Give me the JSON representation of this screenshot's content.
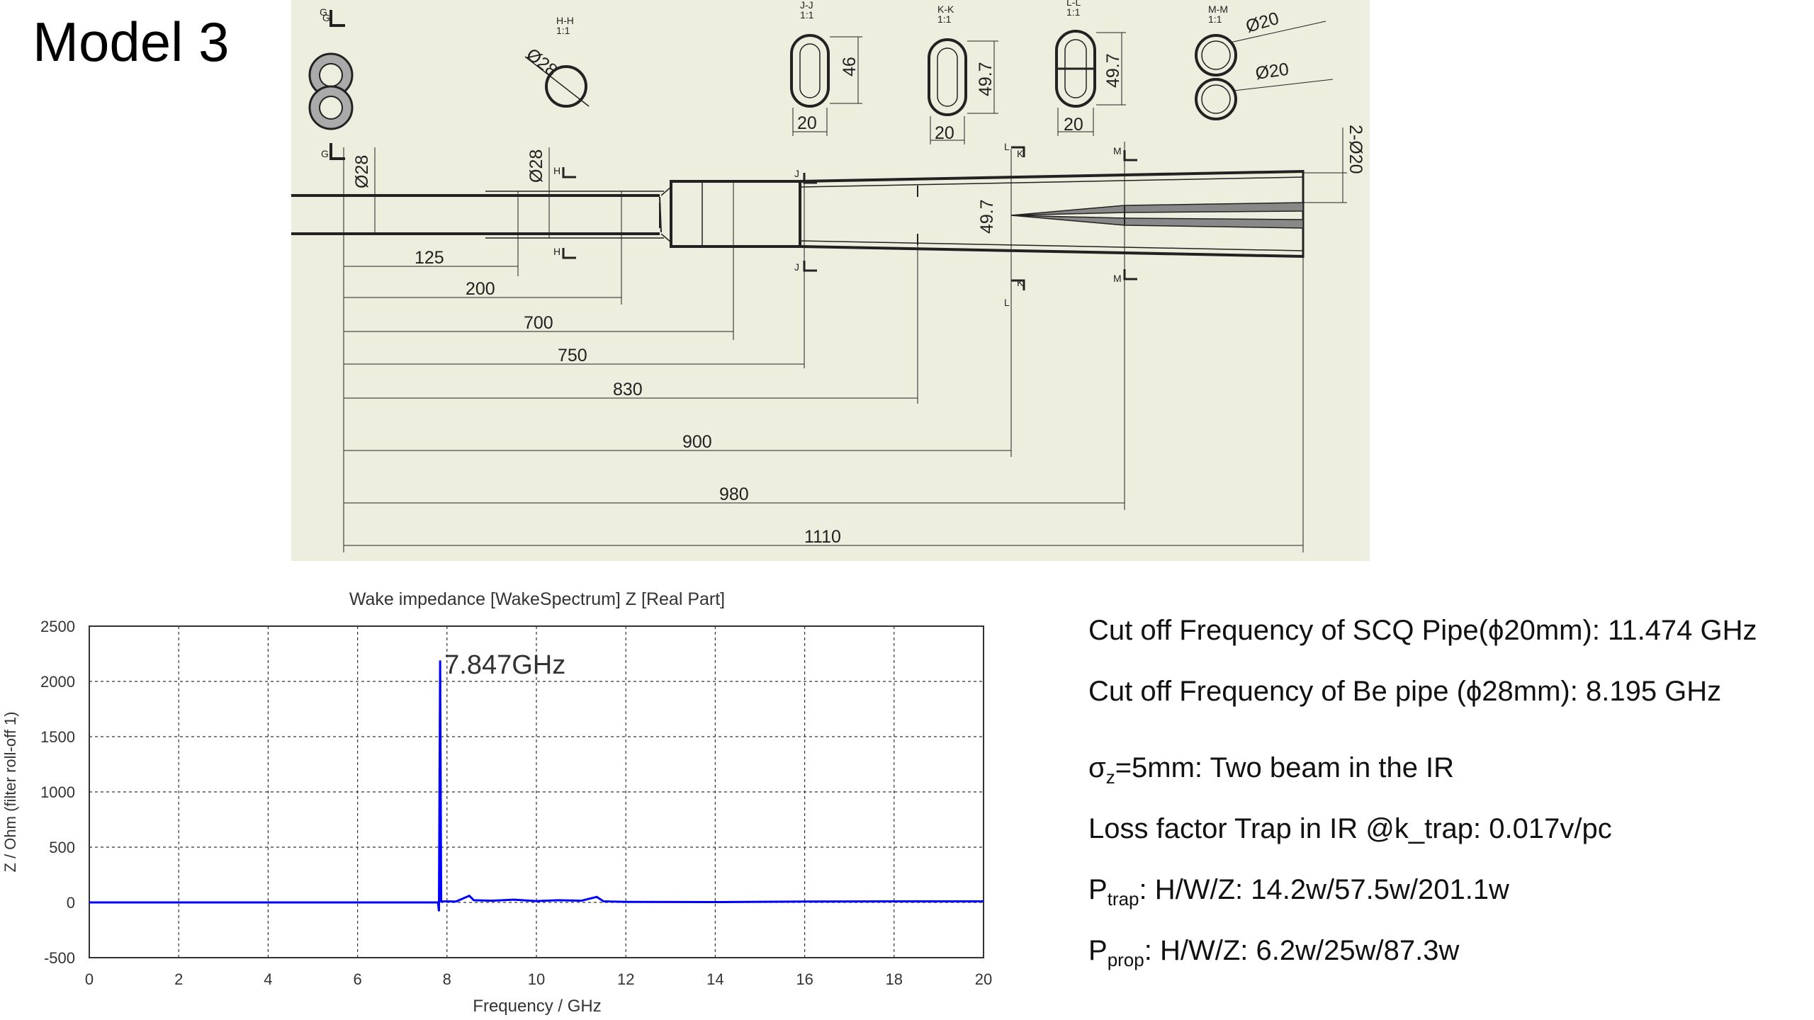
{
  "slide": {
    "title": "Model 3"
  },
  "drawing": {
    "section_labels": [
      "G",
      "H-H",
      "J-J",
      "K-K",
      "L-L",
      "M-M"
    ],
    "section_scales": [
      "1:1",
      "1:1",
      "1:1",
      "1:1",
      "1:1"
    ],
    "view_markers": [
      "G",
      "G",
      "H",
      "H",
      "J",
      "J",
      "K",
      "K",
      "L",
      "L",
      "M",
      "M"
    ],
    "section_dims": {
      "phi28": "Ø28",
      "jj_height": "46",
      "jj_width": "20",
      "kk_height": "49.7",
      "kk_width": "20",
      "ll_height": "49.7",
      "ll_width": "20",
      "mm_dia1": "Ø20",
      "mm_dia2": "Ø20"
    },
    "pipe_dims": {
      "dia_g": "Ø28",
      "dia_h": "Ø28",
      "height_main": "49.7",
      "twin_dia": "2-Ø20"
    },
    "length_dims": [
      "125",
      "200",
      "700",
      "750",
      "830",
      "900",
      "980",
      "1110"
    ]
  },
  "chart_data": {
    "type": "line",
    "title": "Wake impedance [WakeSpectrum] Z [Real Part]",
    "xlabel": "Frequency / GHz",
    "ylabel": "Z / Ohm (filter roll-off 1)",
    "xlim": [
      0,
      20
    ],
    "ylim": [
      -500,
      2500
    ],
    "xticks": [
      0,
      2,
      4,
      6,
      8,
      10,
      12,
      14,
      16,
      18,
      20
    ],
    "yticks": [
      2500,
      2000,
      1500,
      1000,
      500,
      0,
      -500
    ],
    "grid": true,
    "line_color": "#0000ff",
    "annotation": {
      "text": "7.847GHz",
      "x": 7.847,
      "y": 2200
    },
    "series": [
      {
        "values": [
          [
            0,
            0
          ],
          [
            7.8,
            0
          ],
          [
            7.82,
            -80
          ],
          [
            7.847,
            2190
          ],
          [
            7.87,
            10
          ],
          [
            8.2,
            8
          ],
          [
            8.5,
            60
          ],
          [
            8.6,
            20
          ],
          [
            9.0,
            15
          ],
          [
            9.5,
            25
          ],
          [
            10.0,
            12
          ],
          [
            10.5,
            20
          ],
          [
            11.0,
            15
          ],
          [
            11.35,
            50
          ],
          [
            11.5,
            10
          ],
          [
            12.0,
            5
          ],
          [
            14.0,
            3
          ],
          [
            16.0,
            8
          ],
          [
            18.0,
            10
          ],
          [
            20.0,
            10
          ]
        ]
      }
    ]
  },
  "info": {
    "line1": "Cut off Frequency of SCQ Pipe(ϕ20mm): 11.474 GHz",
    "line2": "Cut off Frequency of Be pipe  (ϕ28mm):  8.195 GHz",
    "line3_sym": "σ",
    "line3_sub": "z",
    "line3_rest": "=5mm: Two beam in the IR",
    "line4": "Loss factor Trap in IR @k_trap: 0.017v/pc",
    "line5_sym": "P",
    "line5_sub": "trap",
    "line5_rest": ": H/W/Z: 14.2w/57.5w/201.1w",
    "line6_sym": "P",
    "line6_sub": "prop",
    "line6_rest": ": H/W/Z: 6.2w/25w/87.3w"
  }
}
